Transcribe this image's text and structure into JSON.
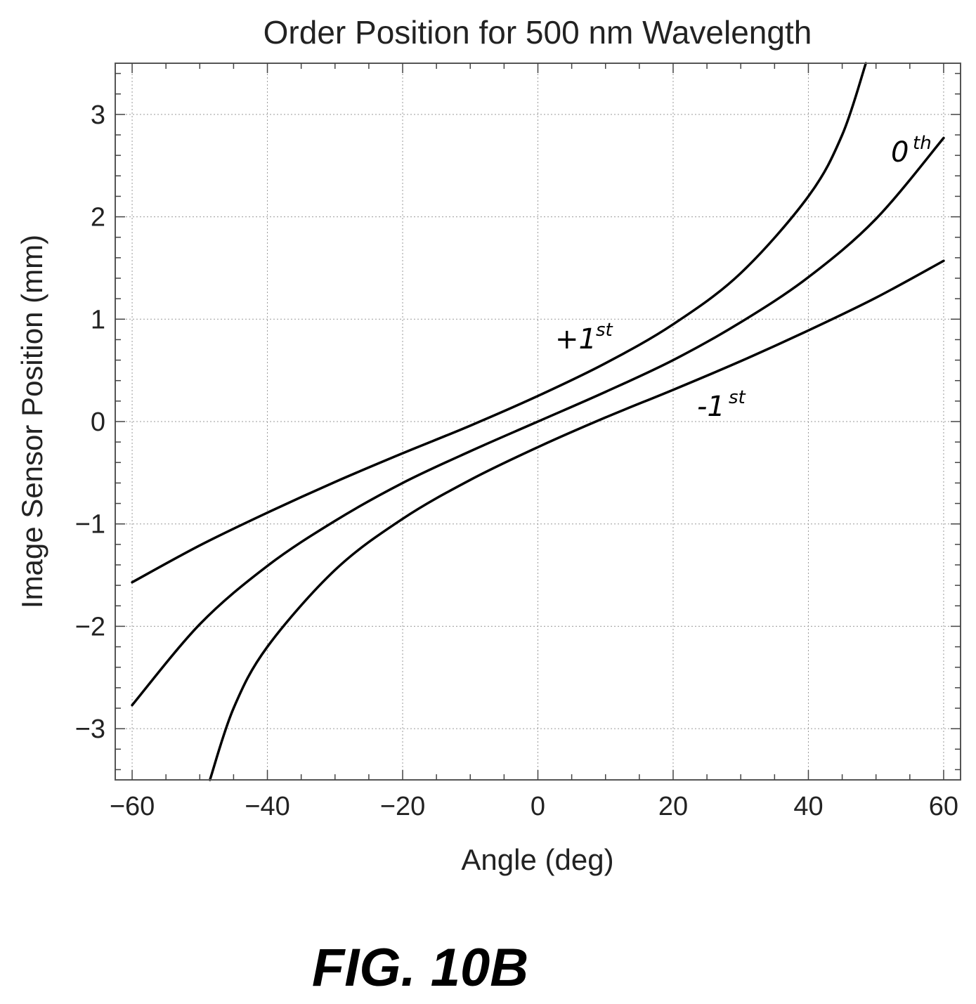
{
  "chart_data": {
    "type": "line",
    "title": "Order Position for 500 nm Wavelength",
    "xlabel": "Angle (deg)",
    "ylabel": "Image Sensor Position (mm)",
    "xlim": [
      -62.5,
      62.5
    ],
    "ylim": [
      -3.5,
      3.5
    ],
    "x_ticks": [
      -60,
      -40,
      -20,
      0,
      20,
      40,
      60
    ],
    "x_tick_labels": [
      "−60",
      "−40",
      "−20",
      "0",
      "20",
      "40",
      "60"
    ],
    "y_ticks": [
      3,
      2,
      1,
      0,
      -1,
      -2,
      -3
    ],
    "y_tick_labels": [
      "3",
      "2",
      "1",
      "0",
      "−1",
      "−2",
      "−3"
    ],
    "grid": true,
    "legend": "none",
    "line_color": "#000000",
    "series": [
      {
        "name": "+1st",
        "label_main": "+1",
        "label_sup": "st",
        "x": [
          -60,
          -50,
          -40,
          -30,
          -20,
          -10,
          0,
          10,
          20,
          30,
          40,
          45,
          48.5
        ],
        "y": [
          -1.57,
          -1.21,
          -0.89,
          -0.59,
          -0.31,
          -0.04,
          0.25,
          0.57,
          0.95,
          1.45,
          2.2,
          2.8,
          3.5
        ]
      },
      {
        "name": "0th",
        "label_main": "0",
        "label_sup": "th",
        "x": [
          -60,
          -50,
          -40,
          -30,
          -20,
          -10,
          0,
          10,
          20,
          30,
          40,
          50,
          60
        ],
        "y": [
          -2.77,
          -1.98,
          -1.41,
          -0.97,
          -0.6,
          -0.29,
          0,
          0.29,
          0.6,
          0.97,
          1.41,
          1.98,
          2.77
        ]
      },
      {
        "name": "-1st",
        "label_main": "-1",
        "label_sup": "st",
        "x": [
          -48.5,
          -45,
          -40,
          -30,
          -20,
          -10,
          0,
          10,
          20,
          30,
          40,
          50,
          60
        ],
        "y": [
          -3.5,
          -2.8,
          -2.2,
          -1.45,
          -0.95,
          -0.57,
          -0.25,
          0.04,
          0.31,
          0.59,
          0.89,
          1.21,
          1.57
        ]
      }
    ]
  },
  "caption": "FIG. 10B"
}
